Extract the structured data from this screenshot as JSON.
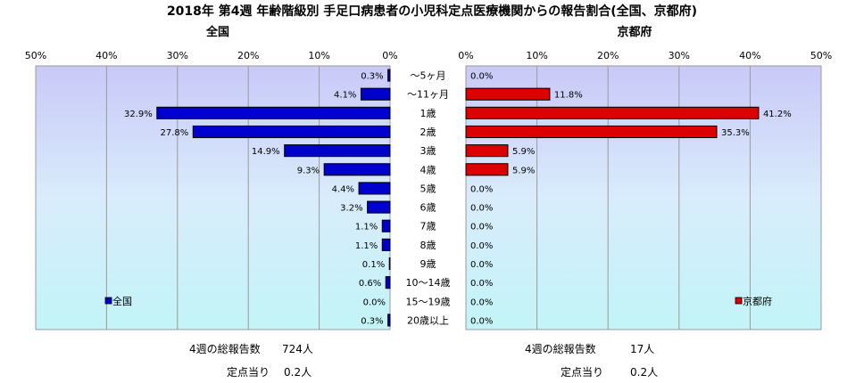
{
  "title": "2018年 第4週 年齢階級別 手足口病患者の小児科定点医療機関からの報告割合(全国、京都府)",
  "colors": {
    "national": "#0000cc",
    "kyoto": "#dd0000",
    "edge": "#000000"
  },
  "chart_data": {
    "type": "bar",
    "orientation": "horizontal",
    "categories": [
      "〜5ヶ月",
      "〜11ヶ月",
      "1歳",
      "2歳",
      "3歳",
      "4歳",
      "5歳",
      "6歳",
      "7歳",
      "8歳",
      "9歳",
      "10〜14歳",
      "15〜19歳",
      "20歳以上"
    ],
    "xlim": [
      0,
      50
    ],
    "tick_values": [
      0,
      10,
      20,
      30,
      40,
      50
    ],
    "tick_labels": [
      "0%",
      "10%",
      "20%",
      "30%",
      "40%",
      "50%"
    ],
    "grid": true,
    "panels": [
      {
        "title": "全国",
        "legend": "全国",
        "legend_position": "bottom-left",
        "direction": "left",
        "values": [
          0.3,
          4.1,
          32.9,
          27.8,
          14.9,
          9.3,
          4.4,
          3.2,
          1.1,
          1.1,
          0.1,
          0.6,
          0.0,
          0.3
        ],
        "value_labels": [
          "0.3%",
          "4.1%",
          "32.9%",
          "27.8%",
          "14.9%",
          "9.3%",
          "4.4%",
          "3.2%",
          "1.1%",
          "1.1%",
          "0.1%",
          "0.6%",
          "0.0%",
          "0.3%"
        ]
      },
      {
        "title": "京都府",
        "legend": "京都府",
        "legend_position": "bottom-right",
        "direction": "right",
        "values": [
          0.0,
          11.8,
          41.2,
          35.3,
          5.9,
          5.9,
          0.0,
          0.0,
          0.0,
          0.0,
          0.0,
          0.0,
          0.0,
          0.0
        ],
        "value_labels": [
          "0.0%",
          "11.8%",
          "41.2%",
          "35.3%",
          "5.9%",
          "5.9%",
          "0.0%",
          "0.0%",
          "0.0%",
          "0.0%",
          "0.0%",
          "0.0%",
          "0.0%",
          "0.0%"
        ]
      }
    ]
  },
  "summary": {
    "national": {
      "total_label": "4週の総報告数",
      "total_value": "724人",
      "per_label": "定点当り",
      "per_value": "0.2人"
    },
    "kyoto": {
      "total_label": "4週の総報告数",
      "total_value": "17人",
      "per_label": "定点当り",
      "per_value": "0.2人"
    }
  }
}
